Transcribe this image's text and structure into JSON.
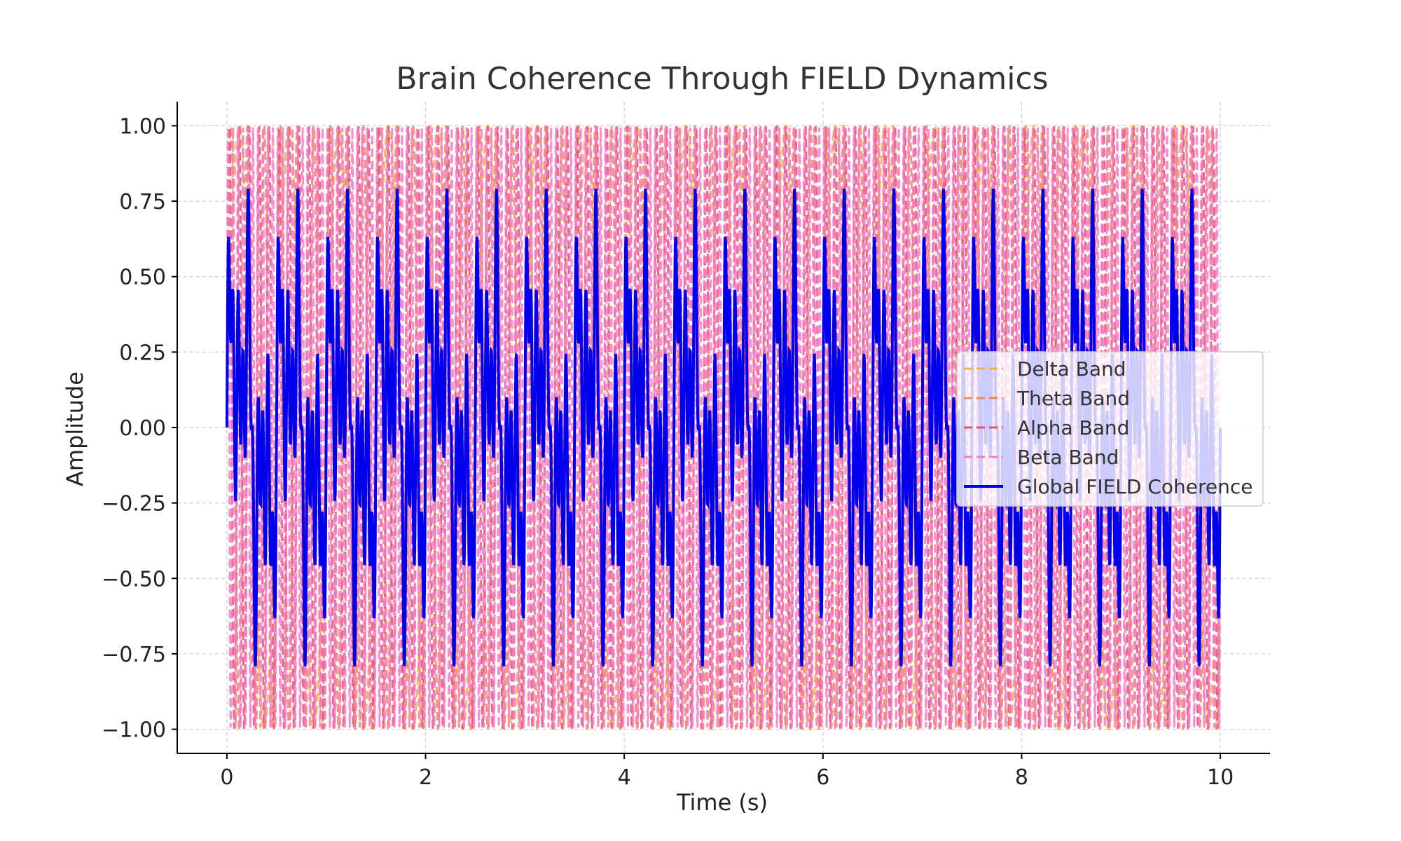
{
  "chart_data": {
    "type": "line",
    "title": "Brain Coherence Through FIELD Dynamics",
    "xlabel": "Time (s)",
    "ylabel": "Amplitude",
    "xlim": [
      -0.5,
      10.5
    ],
    "ylim": [
      -1.08,
      1.08
    ],
    "x_ticks": [
      0,
      2,
      4,
      6,
      8,
      10
    ],
    "x_tick_labels": [
      "0",
      "2",
      "4",
      "6",
      "8",
      "10"
    ],
    "y_ticks": [
      1.0,
      0.75,
      0.5,
      0.25,
      0.0,
      -0.25,
      -0.5,
      -0.75,
      -1.0
    ],
    "y_tick_labels": [
      "1.00",
      "0.75",
      "0.50",
      "0.25",
      "0.00",
      "−0.25",
      "−0.50",
      "−0.75",
      "−1.00"
    ],
    "grid": true,
    "legend_position": "center-right",
    "x_range": [
      0,
      10
    ],
    "series": [
      {
        "name": "Delta Band",
        "color": "#f5b041",
        "style": "dashed",
        "frequency_hz": 2,
        "amplitude": 1.0,
        "values_desc": "sine wave"
      },
      {
        "name": "Theta Band",
        "color": "#ec8a54",
        "style": "dashed",
        "frequency_hz": 6,
        "amplitude": 1.0,
        "values_desc": "sine wave"
      },
      {
        "name": "Alpha Band",
        "color": "#e8506b",
        "style": "dashed",
        "frequency_hz": 10,
        "amplitude": 1.0,
        "values_desc": "sine wave"
      },
      {
        "name": "Beta Band",
        "color": "#f27cc4",
        "style": "dashed",
        "frequency_hz": 20,
        "amplitude": 1.0,
        "values_desc": "sine wave"
      },
      {
        "name": "Global FIELD Coherence",
        "color": "#0000ee",
        "style": "solid",
        "values_desc": "average of band signals"
      }
    ]
  }
}
